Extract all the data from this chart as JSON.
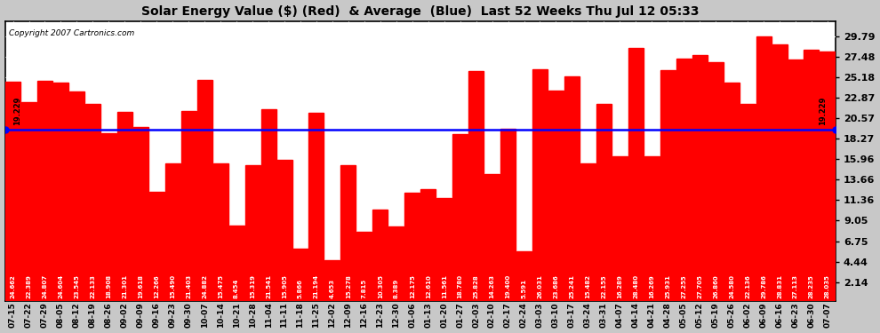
{
  "title": "Solar Energy Value ($) (Red)  & Average  (Blue)  Last 52 Weeks Thu Jul 12 05:33",
  "copyright": "Copyright 2007 Cartronics.com",
  "average_line": 19.229,
  "bar_color": "#ff0000",
  "average_color": "#0000ff",
  "background_color": "#c8c8c8",
  "plot_bg_color": "#ffffff",
  "yticks": [
    2.14,
    4.44,
    6.75,
    9.05,
    11.36,
    13.66,
    15.96,
    18.27,
    20.57,
    22.87,
    25.18,
    27.48,
    29.79
  ],
  "ylim": [
    0,
    31.5
  ],
  "categories": [
    "07-15",
    "07-22",
    "07-29",
    "08-05",
    "08-12",
    "08-19",
    "08-26",
    "09-02",
    "09-09",
    "09-16",
    "09-23",
    "09-30",
    "10-07",
    "10-14",
    "10-21",
    "10-28",
    "11-04",
    "11-11",
    "11-18",
    "11-25",
    "12-02",
    "12-09",
    "12-16",
    "12-23",
    "12-30",
    "01-06",
    "01-13",
    "01-20",
    "01-27",
    "02-03",
    "02-10",
    "02-17",
    "02-24",
    "03-03",
    "03-10",
    "03-17",
    "03-24",
    "03-31",
    "04-07",
    "04-14",
    "04-21",
    "04-28",
    "05-05",
    "05-12",
    "05-19",
    "05-26",
    "06-02",
    "06-09",
    "06-16",
    "06-23",
    "06-30",
    "07-07"
  ],
  "values": [
    24.662,
    22.389,
    24.807,
    24.604,
    23.545,
    22.133,
    18.908,
    21.301,
    19.618,
    12.266,
    15.49,
    21.403,
    24.882,
    15.475,
    8.454,
    15.319,
    21.541,
    15.905,
    5.866,
    21.194,
    4.653,
    15.278,
    7.815,
    10.305,
    8.389,
    12.175,
    12.61,
    11.561,
    18.78,
    25.828,
    14.263,
    19.4,
    5.591,
    26.031,
    23.686,
    25.241,
    15.482,
    22.155,
    16.289,
    28.48,
    16.269,
    25.931,
    27.255,
    27.705,
    26.86,
    24.58,
    22.136,
    29.786,
    28.831,
    27.113,
    28.235,
    28.035
  ]
}
